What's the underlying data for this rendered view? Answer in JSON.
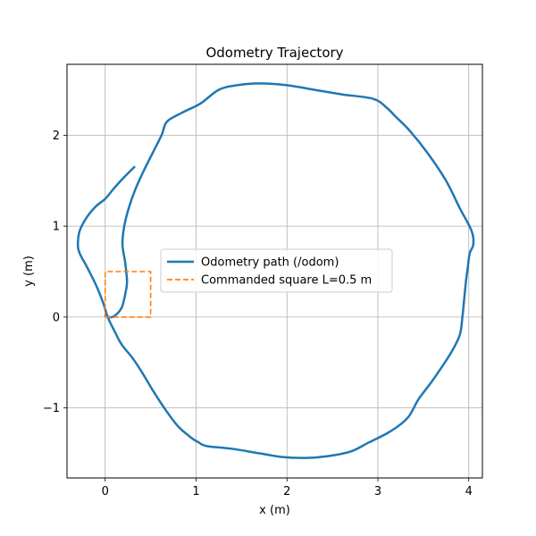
{
  "chart_data": {
    "type": "line",
    "title": "Odometry Trajectory",
    "xlabel": "x (m)",
    "ylabel": "y (m)",
    "xlim": [
      -0.42,
      4.15
    ],
    "ylim": [
      -1.77,
      2.78
    ],
    "xticks": [
      0,
      1,
      2,
      3,
      4
    ],
    "yticks": [
      -1,
      0,
      1,
      2
    ],
    "ytick_labels": [
      "−1",
      "0",
      "1",
      "2"
    ],
    "grid": true,
    "legend_position": "center-left",
    "series": [
      {
        "name": "Odometry path (/odom)",
        "style": "solid",
        "color": "#1f77b4",
        "x": [
          0.0,
          0.08,
          0.18,
          0.23,
          0.24,
          0.22,
          0.19,
          0.21,
          0.26,
          0.33,
          0.42,
          0.52,
          0.62,
          0.68,
          0.85,
          1.05,
          1.25,
          1.45,
          1.7,
          2.0,
          2.3,
          2.6,
          2.95,
          3.1,
          3.2,
          3.35,
          3.55,
          3.75,
          3.9,
          4.03,
          4.05,
          4.01,
          3.99,
          3.97,
          3.95,
          3.93,
          3.9,
          3.8,
          3.6,
          3.45,
          3.35,
          3.25,
          3.1,
          2.9,
          2.7,
          2.45,
          2.2,
          1.95,
          1.7,
          1.4,
          1.12,
          1.03,
          0.95,
          0.8,
          0.65,
          0.52,
          0.4,
          0.3,
          0.18,
          0.1,
          0.05,
          0.02,
          -0.02,
          -0.1,
          -0.2,
          -0.28,
          -0.3,
          -0.28,
          -0.2,
          -0.1,
          0.0,
          0.1,
          0.2,
          0.32
        ],
        "y": [
          0.02,
          0.0,
          0.1,
          0.3,
          0.4,
          0.6,
          0.8,
          1.0,
          1.2,
          1.4,
          1.6,
          1.8,
          2.0,
          2.15,
          2.25,
          2.35,
          2.5,
          2.55,
          2.57,
          2.55,
          2.5,
          2.45,
          2.4,
          2.3,
          2.2,
          2.05,
          1.8,
          1.5,
          1.2,
          0.95,
          0.8,
          0.7,
          0.55,
          0.4,
          0.2,
          0.0,
          -0.2,
          -0.4,
          -0.7,
          -0.9,
          -1.08,
          -1.18,
          -1.28,
          -1.38,
          -1.48,
          -1.53,
          -1.55,
          -1.54,
          -1.5,
          -1.45,
          -1.42,
          -1.38,
          -1.33,
          -1.2,
          -1.0,
          -0.8,
          -0.6,
          -0.45,
          -0.3,
          -0.15,
          -0.05,
          0.02,
          0.15,
          0.35,
          0.55,
          0.7,
          0.8,
          0.95,
          1.1,
          1.22,
          1.3,
          1.42,
          1.53,
          1.65
        ]
      },
      {
        "name": "Commanded square L=0.5 m",
        "style": "dashed",
        "color": "#ff7f0e",
        "x": [
          0,
          0.5,
          0.5,
          0,
          0
        ],
        "y": [
          0,
          0,
          0.5,
          0.5,
          0
        ]
      }
    ]
  }
}
